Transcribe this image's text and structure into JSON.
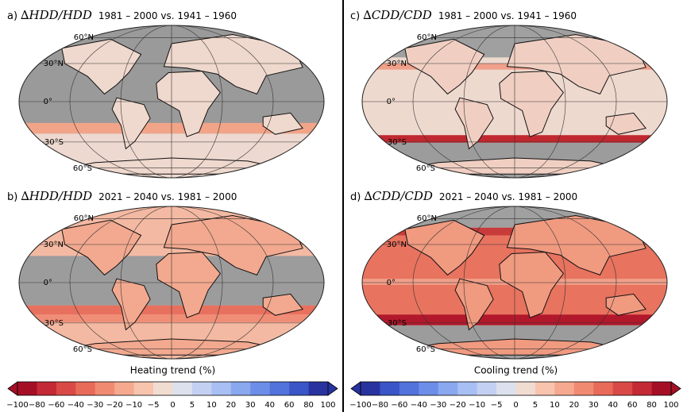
{
  "panels": [
    {
      "letter": "a)",
      "variable": "∆HDD/HDD",
      "period": "1981 – 2000 vs. 1941 – 1960",
      "lat_labels": [
        "60°N",
        "30°N",
        "0°",
        "30°S",
        "60°S"
      ]
    },
    {
      "letter": "b)",
      "variable": "∆HDD/HDD",
      "period": "2021 – 2040 vs. 1981 – 2000",
      "lat_labels": [
        "60°N",
        "30°N",
        "0°",
        "30°S",
        "60°S"
      ]
    },
    {
      "letter": "c)",
      "variable": "∆CDD/CDD",
      "period": "1981 – 2000 vs. 1941 – 1960",
      "lat_labels": [
        "60°N",
        "30°N",
        "0°",
        "30°S",
        "60°S"
      ]
    },
    {
      "letter": "d)",
      "variable": "∆CDD/CDD",
      "period": "2021 – 2040 vs. 1981 – 2000",
      "lat_labels": [
        "60°N",
        "30°N",
        "0°",
        "30°S",
        "60°S"
      ]
    }
  ],
  "colorbars": [
    {
      "label": "Heating trend (%)",
      "ticks": [
        "−100",
        "−80",
        "−60",
        "−40",
        "−30",
        "−20",
        "−10",
        "−5",
        "0",
        "5",
        "10",
        "20",
        "30",
        "40",
        "60",
        "80",
        "100"
      ]
    },
    {
      "label": "Cooling trend (%)",
      "ticks": [
        "−100",
        "−80",
        "−60",
        "−40",
        "−30",
        "−20",
        "−10",
        "−5",
        "0",
        "5",
        "10",
        "20",
        "30",
        "40",
        "60",
        "80",
        "100"
      ]
    }
  ]
}
